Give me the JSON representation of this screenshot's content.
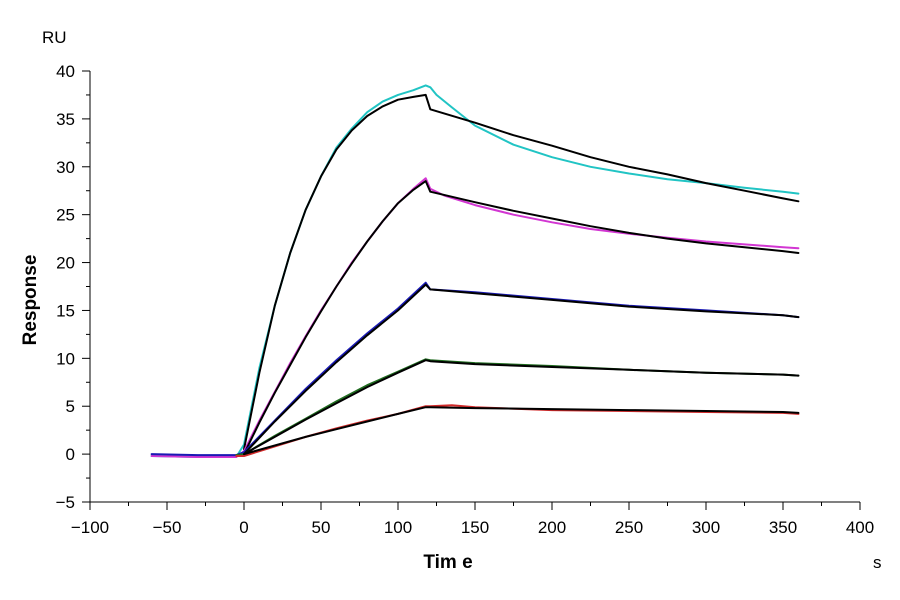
{
  "chart_data": {
    "type": "line",
    "xlabel": "Tim e",
    "ylabel": "Response",
    "x_unit": "s",
    "y_unit": "RU",
    "xlim": [
      -100,
      400
    ],
    "ylim": [
      -5,
      40
    ],
    "x_ticks": [
      -100,
      -50,
      0,
      50,
      100,
      150,
      200,
      250,
      300,
      350,
      400
    ],
    "y_ticks": [
      -5,
      0,
      5,
      10,
      15,
      20,
      25,
      30,
      35,
      40
    ],
    "grid": false,
    "series": [
      {
        "color": "#21c4c4",
        "points": [
          [
            -60,
            -0.2
          ],
          [
            -30,
            -0.3
          ],
          [
            -5,
            -0.3
          ],
          [
            0,
            1
          ],
          [
            5,
            5
          ],
          [
            10,
            9
          ],
          [
            20,
            15.5
          ],
          [
            30,
            21
          ],
          [
            40,
            25.5
          ],
          [
            50,
            29
          ],
          [
            60,
            32
          ],
          [
            70,
            34
          ],
          [
            80,
            35.7
          ],
          [
            90,
            36.8
          ],
          [
            100,
            37.5
          ],
          [
            110,
            38
          ],
          [
            118,
            38.5
          ],
          [
            121,
            38.3
          ],
          [
            125,
            37.5
          ],
          [
            135,
            36.2
          ],
          [
            150,
            34.3
          ],
          [
            175,
            32.3
          ],
          [
            200,
            31
          ],
          [
            225,
            30
          ],
          [
            250,
            29.3
          ],
          [
            275,
            28.7
          ],
          [
            300,
            28.3
          ],
          [
            325,
            27.8
          ],
          [
            350,
            27.4
          ],
          [
            360,
            27.2
          ]
        ]
      },
      {
        "color": "#000000",
        "points": [
          [
            0,
            0.5
          ],
          [
            10,
            8.5
          ],
          [
            20,
            15.5
          ],
          [
            30,
            21
          ],
          [
            40,
            25.5
          ],
          [
            50,
            29
          ],
          [
            60,
            31.8
          ],
          [
            70,
            33.8
          ],
          [
            80,
            35.3
          ],
          [
            90,
            36.3
          ],
          [
            100,
            37
          ],
          [
            110,
            37.3
          ],
          [
            118,
            37.5
          ],
          [
            121,
            36
          ],
          [
            150,
            34.6
          ],
          [
            175,
            33.3
          ],
          [
            200,
            32.2
          ],
          [
            225,
            31
          ],
          [
            250,
            30
          ],
          [
            275,
            29.2
          ],
          [
            300,
            28.3
          ],
          [
            325,
            27.5
          ],
          [
            350,
            26.7
          ],
          [
            360,
            26.4
          ]
        ]
      },
      {
        "color": "#d236d2",
        "points": [
          [
            -60,
            -0.2
          ],
          [
            -30,
            -0.3
          ],
          [
            -5,
            -0.3
          ],
          [
            0,
            0.3
          ],
          [
            10,
            3.5
          ],
          [
            20,
            6.5
          ],
          [
            30,
            9.5
          ],
          [
            40,
            12.3
          ],
          [
            50,
            15
          ],
          [
            60,
            17.5
          ],
          [
            70,
            20
          ],
          [
            80,
            22.2
          ],
          [
            90,
            24.3
          ],
          [
            100,
            26.2
          ],
          [
            110,
            27.7
          ],
          [
            118,
            28.8
          ],
          [
            121,
            27.7
          ],
          [
            130,
            27
          ],
          [
            150,
            26
          ],
          [
            175,
            25
          ],
          [
            200,
            24.2
          ],
          [
            225,
            23.5
          ],
          [
            250,
            23
          ],
          [
            275,
            22.6
          ],
          [
            300,
            22.2
          ],
          [
            325,
            21.9
          ],
          [
            350,
            21.6
          ],
          [
            360,
            21.5
          ]
        ]
      },
      {
        "color": "#000000",
        "points": [
          [
            0,
            0
          ],
          [
            10,
            3.3
          ],
          [
            20,
            6.4
          ],
          [
            30,
            9.3
          ],
          [
            40,
            12.2
          ],
          [
            50,
            14.9
          ],
          [
            60,
            17.5
          ],
          [
            70,
            19.9
          ],
          [
            80,
            22.2
          ],
          [
            90,
            24.3
          ],
          [
            100,
            26.2
          ],
          [
            110,
            27.6
          ],
          [
            118,
            28.5
          ],
          [
            121,
            27.4
          ],
          [
            150,
            26.3
          ],
          [
            175,
            25.4
          ],
          [
            200,
            24.6
          ],
          [
            225,
            23.8
          ],
          [
            250,
            23.1
          ],
          [
            275,
            22.5
          ],
          [
            300,
            22
          ],
          [
            325,
            21.6
          ],
          [
            350,
            21.2
          ],
          [
            360,
            21
          ]
        ]
      },
      {
        "color": "#1a1ab4",
        "points": [
          [
            -60,
            0
          ],
          [
            -30,
            -0.1
          ],
          [
            -5,
            -0.1
          ],
          [
            0,
            0.2
          ],
          [
            20,
            3.5
          ],
          [
            40,
            6.8
          ],
          [
            60,
            9.8
          ],
          [
            80,
            12.6
          ],
          [
            100,
            15.2
          ],
          [
            118,
            17.9
          ],
          [
            121,
            17.2
          ],
          [
            150,
            16.9
          ],
          [
            200,
            16.2
          ],
          [
            250,
            15.5
          ],
          [
            300,
            15
          ],
          [
            350,
            14.5
          ],
          [
            360,
            14.3
          ]
        ]
      },
      {
        "color": "#000000",
        "points": [
          [
            0,
            0
          ],
          [
            20,
            3.4
          ],
          [
            40,
            6.6
          ],
          [
            60,
            9.6
          ],
          [
            80,
            12.4
          ],
          [
            100,
            15
          ],
          [
            118,
            17.7
          ],
          [
            121,
            17.2
          ],
          [
            150,
            16.8
          ],
          [
            200,
            16.1
          ],
          [
            250,
            15.4
          ],
          [
            300,
            14.9
          ],
          [
            350,
            14.5
          ],
          [
            360,
            14.3
          ]
        ]
      },
      {
        "color": "#1f6b1f",
        "points": [
          [
            -5,
            -0.1
          ],
          [
            0,
            0
          ],
          [
            20,
            1.9
          ],
          [
            40,
            3.7
          ],
          [
            60,
            5.5
          ],
          [
            80,
            7.2
          ],
          [
            100,
            8.6
          ],
          [
            118,
            9.9
          ],
          [
            121,
            9.8
          ],
          [
            150,
            9.5
          ],
          [
            200,
            9.2
          ],
          [
            250,
            8.8
          ],
          [
            300,
            8.5
          ],
          [
            350,
            8.3
          ],
          [
            360,
            8.2
          ]
        ]
      },
      {
        "color": "#000000",
        "points": [
          [
            0,
            0
          ],
          [
            20,
            1.8
          ],
          [
            40,
            3.6
          ],
          [
            60,
            5.3
          ],
          [
            80,
            7
          ],
          [
            100,
            8.5
          ],
          [
            118,
            9.8
          ],
          [
            121,
            9.7
          ],
          [
            150,
            9.4
          ],
          [
            200,
            9.1
          ],
          [
            250,
            8.8
          ],
          [
            300,
            8.5
          ],
          [
            350,
            8.3
          ],
          [
            360,
            8.2
          ]
        ]
      },
      {
        "color": "#d12a2a",
        "points": [
          [
            -5,
            -0.2
          ],
          [
            0,
            -0.2
          ],
          [
            20,
            0.8
          ],
          [
            40,
            1.8
          ],
          [
            60,
            2.7
          ],
          [
            80,
            3.5
          ],
          [
            100,
            4.2
          ],
          [
            118,
            5
          ],
          [
            121,
            5
          ],
          [
            135,
            5.1
          ],
          [
            150,
            4.9
          ],
          [
            200,
            4.6
          ],
          [
            250,
            4.5
          ],
          [
            300,
            4.4
          ],
          [
            350,
            4.3
          ],
          [
            360,
            4.2
          ]
        ]
      },
      {
        "color": "#000000",
        "points": [
          [
            0,
            0
          ],
          [
            20,
            0.9
          ],
          [
            40,
            1.8
          ],
          [
            60,
            2.6
          ],
          [
            80,
            3.4
          ],
          [
            100,
            4.2
          ],
          [
            118,
            4.9
          ],
          [
            121,
            4.9
          ],
          [
            150,
            4.8
          ],
          [
            200,
            4.7
          ],
          [
            250,
            4.6
          ],
          [
            300,
            4.5
          ],
          [
            350,
            4.4
          ],
          [
            360,
            4.3
          ]
        ]
      }
    ]
  }
}
